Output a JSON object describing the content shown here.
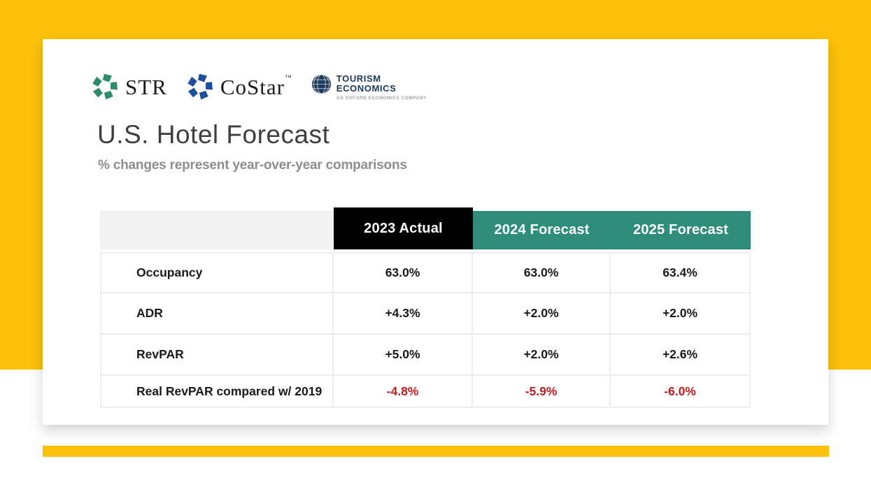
{
  "colors": {
    "background_yellow": "#FDC10A",
    "card_white": "#FFFFFF",
    "actual_black": "#000000",
    "forecast_teal": "#2E8C7B",
    "negative_red": "#C01C20",
    "title_gray": "#3F3F3F",
    "subtitle_gray": "#8E8E8E",
    "table_text": "#1A1A1A",
    "border_gray": "#ECECEC",
    "header_cell_gray": "#F2F2F2",
    "str_green": "#2E8B6F",
    "costar_blue": "#1E4F9C",
    "tourism_navy": "#1B3A5C"
  },
  "logos": {
    "str": {
      "name": "STR"
    },
    "costar": {
      "name": "CoStar",
      "trademark": "™"
    },
    "tourism": {
      "line1": "TOURISM",
      "line2": "ECONOMICS",
      "subtext": "AN OXFORD ECONOMICS COMPANY"
    }
  },
  "header": {
    "title": "U.S. Hotel Forecast",
    "subtitle": "% changes represent year-over-year comparisons"
  },
  "chart_data": {
    "type": "table",
    "title": "U.S. Hotel Forecast",
    "note": "% changes represent year-over-year comparisons",
    "columns": [
      "",
      "2023 Actual",
      "2024 Forecast",
      "2025 Forecast"
    ],
    "rows": [
      {
        "label": "Occupancy",
        "values": [
          "63.0%",
          "63.0%",
          "63.4%"
        ]
      },
      {
        "label": "ADR",
        "values": [
          "+4.3%",
          "+2.0%",
          "+2.0%"
        ]
      },
      {
        "label": "RevPAR",
        "values": [
          "+5.0%",
          "+2.0%",
          "+2.6%"
        ]
      },
      {
        "label": "Real RevPAR compared w/ 2019",
        "values": [
          "-4.8%",
          "-5.9%",
          "-6.0%"
        ]
      }
    ],
    "layout": {
      "header_style": "2023 column black, forecast columns teal, white bold text",
      "negative_values_color": "red"
    }
  }
}
